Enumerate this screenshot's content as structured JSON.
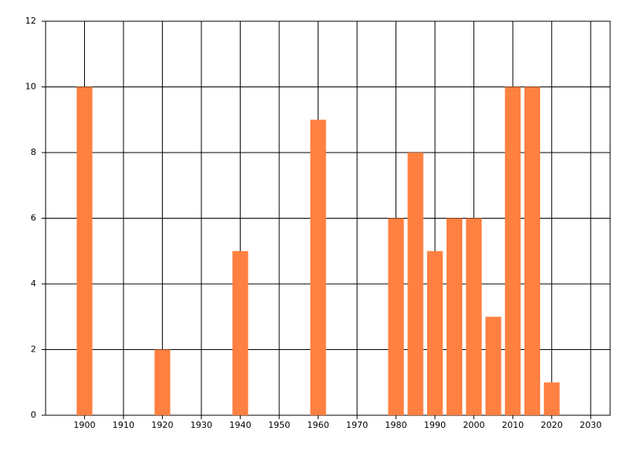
{
  "chart_data": {
    "type": "bar",
    "x": [
      1900,
      1920,
      1940,
      1960,
      1980,
      1985,
      1990,
      1995,
      2000,
      2005,
      2010,
      2015,
      2020
    ],
    "values": [
      10,
      2,
      5,
      9,
      6,
      8,
      5,
      6,
      6,
      3,
      10,
      10,
      1
    ],
    "color": "#ff8040",
    "xlim": [
      1890,
      2035
    ],
    "xticks": [
      1900,
      1910,
      1920,
      1930,
      1940,
      1950,
      1960,
      1970,
      1980,
      1990,
      2000,
      2010,
      2020,
      2030
    ],
    "ylim": [
      0,
      12
    ],
    "yticks": [
      0,
      2,
      4,
      6,
      8,
      10,
      12
    ],
    "grid": true
  }
}
